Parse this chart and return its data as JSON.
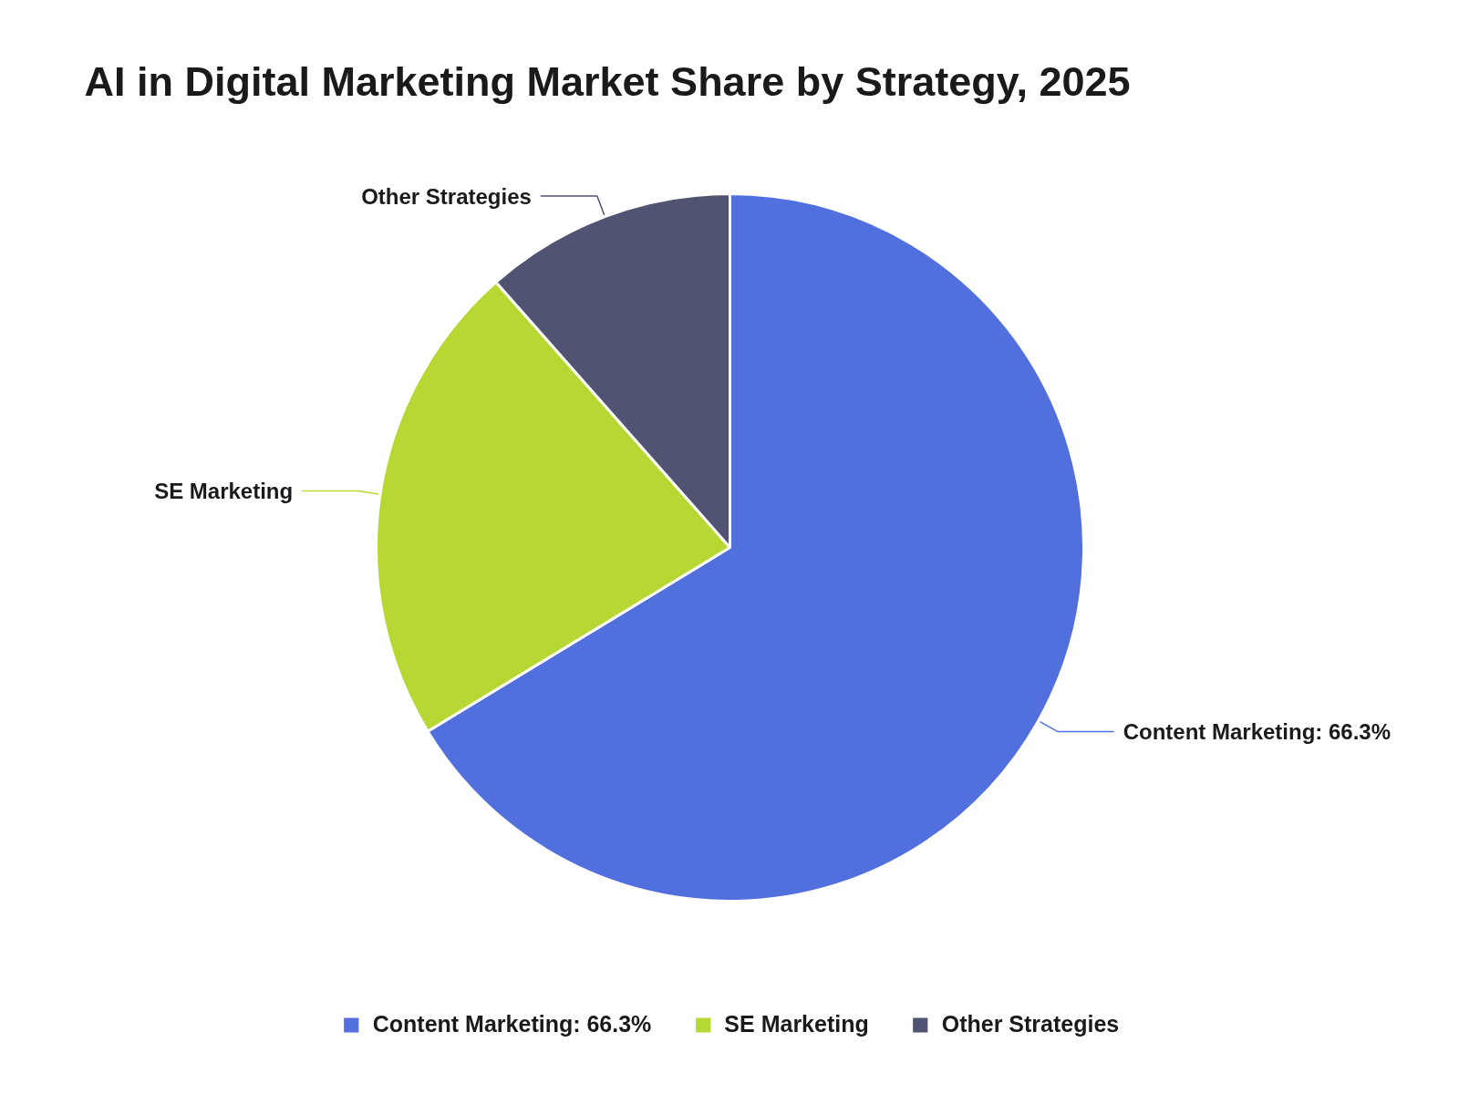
{
  "chart_data": {
    "type": "pie",
    "title": "AI in Digital Marketing Market Share by Strategy, 2025",
    "categories": [
      "Content Marketing: 66.3%",
      "SE Marketing",
      "Other Strategies"
    ],
    "values": [
      66.3,
      22.2,
      11.5
    ],
    "colors": [
      "#5170dd",
      "#b7d733",
      "#505371"
    ],
    "legend": "bottom"
  }
}
